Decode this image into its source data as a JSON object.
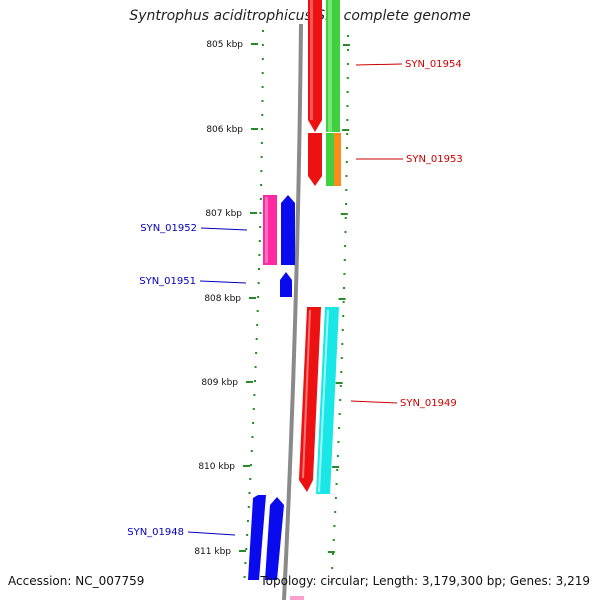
{
  "title": "Syntrophus aciditrophicus SB, complete genome",
  "footer": {
    "accession": "Accession: NC_007759",
    "topology": "Topology: circular; Length: 3,179,300 bp; Genes: 3,219"
  },
  "colors": {
    "forward_label": "#cc0000",
    "reverse_label": "#0000bb",
    "tick": "#2a8a2a",
    "backbone": "#8a8a8a"
  },
  "ticks": [
    {
      "label": "805 kbp"
    },
    {
      "label": "806 kbp"
    },
    {
      "label": "807 kbp"
    },
    {
      "label": "808 kbp"
    },
    {
      "label": "809 kbp"
    },
    {
      "label": "810 kbp"
    },
    {
      "label": "811 kbp"
    }
  ],
  "gene_labels": [
    {
      "text": "SYN_01954",
      "strand": "forward"
    },
    {
      "text": "SYN_01953",
      "strand": "forward"
    },
    {
      "text": "SYN_01952",
      "strand": "reverse"
    },
    {
      "text": "SYN_01951",
      "strand": "reverse"
    },
    {
      "text": "SYN_01949",
      "strand": "forward"
    },
    {
      "text": "SYN_01948",
      "strand": "reverse"
    }
  ]
}
